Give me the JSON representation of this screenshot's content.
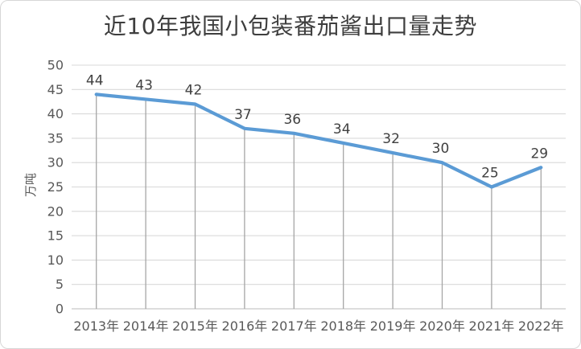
{
  "chart": {
    "title": "近10年我国小包装番茄酱出口量走势"
  },
  "chart_data": {
    "type": "line",
    "title": "近10年我国小包装番茄酱出口量走势",
    "categories": [
      "2013年",
      "2014年",
      "2015年",
      "2016年",
      "2017年",
      "2018年",
      "2019年",
      "2020年",
      "2021年",
      "2022年"
    ],
    "values": [
      44,
      43,
      42,
      37,
      36,
      34,
      32,
      30,
      25,
      29
    ],
    "data_labels": [
      "44",
      "43",
      "42",
      "37",
      "36",
      "34",
      "32",
      "30",
      "25",
      "29"
    ],
    "xlabel": "",
    "ylabel": "万吨",
    "ylim": [
      0,
      50
    ],
    "ytick_step": 5,
    "ytick_labels": [
      "0",
      "5",
      "10",
      "15",
      "20",
      "25",
      "30",
      "35",
      "40",
      "45",
      "50"
    ],
    "grid": true,
    "droplines": true,
    "legend": false,
    "colors": {
      "line": "#5B9BD5",
      "gridline": "#D9D9D9",
      "axis_line": "#D2D2D2",
      "dropline": "#A6A6A6",
      "data_label_text": "#404040",
      "axis_text": "#595959",
      "title_text": "#3E3E3E"
    }
  }
}
